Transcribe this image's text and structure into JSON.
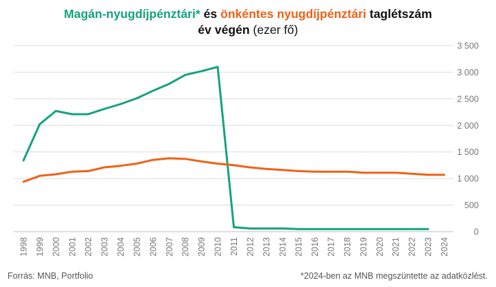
{
  "title": {
    "part1": "Magán-nyugdíjpénztári*",
    "part2": " és ",
    "part3": "önkéntes nyugdíjpénztári",
    "part4": " taglétszám",
    "line2_bold": "év végén",
    "line2_rest": " (ezer fő)"
  },
  "colors": {
    "private": "#14a37b",
    "voluntary": "#ef6216",
    "grid": "#dcdcdc",
    "axis_text": "#777777"
  },
  "footer": {
    "source": "Forrás: MNB, Portfolio",
    "note": "*2024-ben az MNB megszüntette az adatközlést."
  },
  "chart_data": {
    "type": "line",
    "x": [
      "1998",
      "1999",
      "2000",
      "2001",
      "2002",
      "2003",
      "2004",
      "2005",
      "2006",
      "2007",
      "2008",
      "2009",
      "2010",
      "2011",
      "2012",
      "2013",
      "2014",
      "2015",
      "2016",
      "2017",
      "2018",
      "2019",
      "2020",
      "2021",
      "2022",
      "2023",
      "2024"
    ],
    "series": [
      {
        "name": "Magán-nyugdíjpénztári*",
        "color": "#14a37b",
        "values": [
          1340,
          2020,
          2270,
          2210,
          2210,
          2310,
          2400,
          2510,
          2650,
          2780,
          2950,
          3020,
          3100,
          85,
          60,
          60,
          60,
          50,
          50,
          50,
          50,
          50,
          50,
          50,
          50,
          50,
          null
        ]
      },
      {
        "name": "önkéntes nyugdíjpénztári",
        "color": "#ef6216",
        "values": [
          940,
          1050,
          1080,
          1130,
          1140,
          1210,
          1240,
          1280,
          1350,
          1380,
          1370,
          1320,
          1280,
          1250,
          1210,
          1180,
          1160,
          1140,
          1130,
          1130,
          1130,
          1110,
          1110,
          1110,
          1090,
          1070,
          1070
        ]
      }
    ],
    "y_ticks": [
      0,
      500,
      1000,
      1500,
      2000,
      2500,
      3000,
      3500
    ],
    "y_tick_labels": [
      "0",
      "500",
      "1 000",
      "1 500",
      "2 000",
      "2 500",
      "3 000",
      "3 500"
    ],
    "ylim": [
      0,
      3500
    ],
    "grid": true,
    "y_axis_side": "right"
  }
}
